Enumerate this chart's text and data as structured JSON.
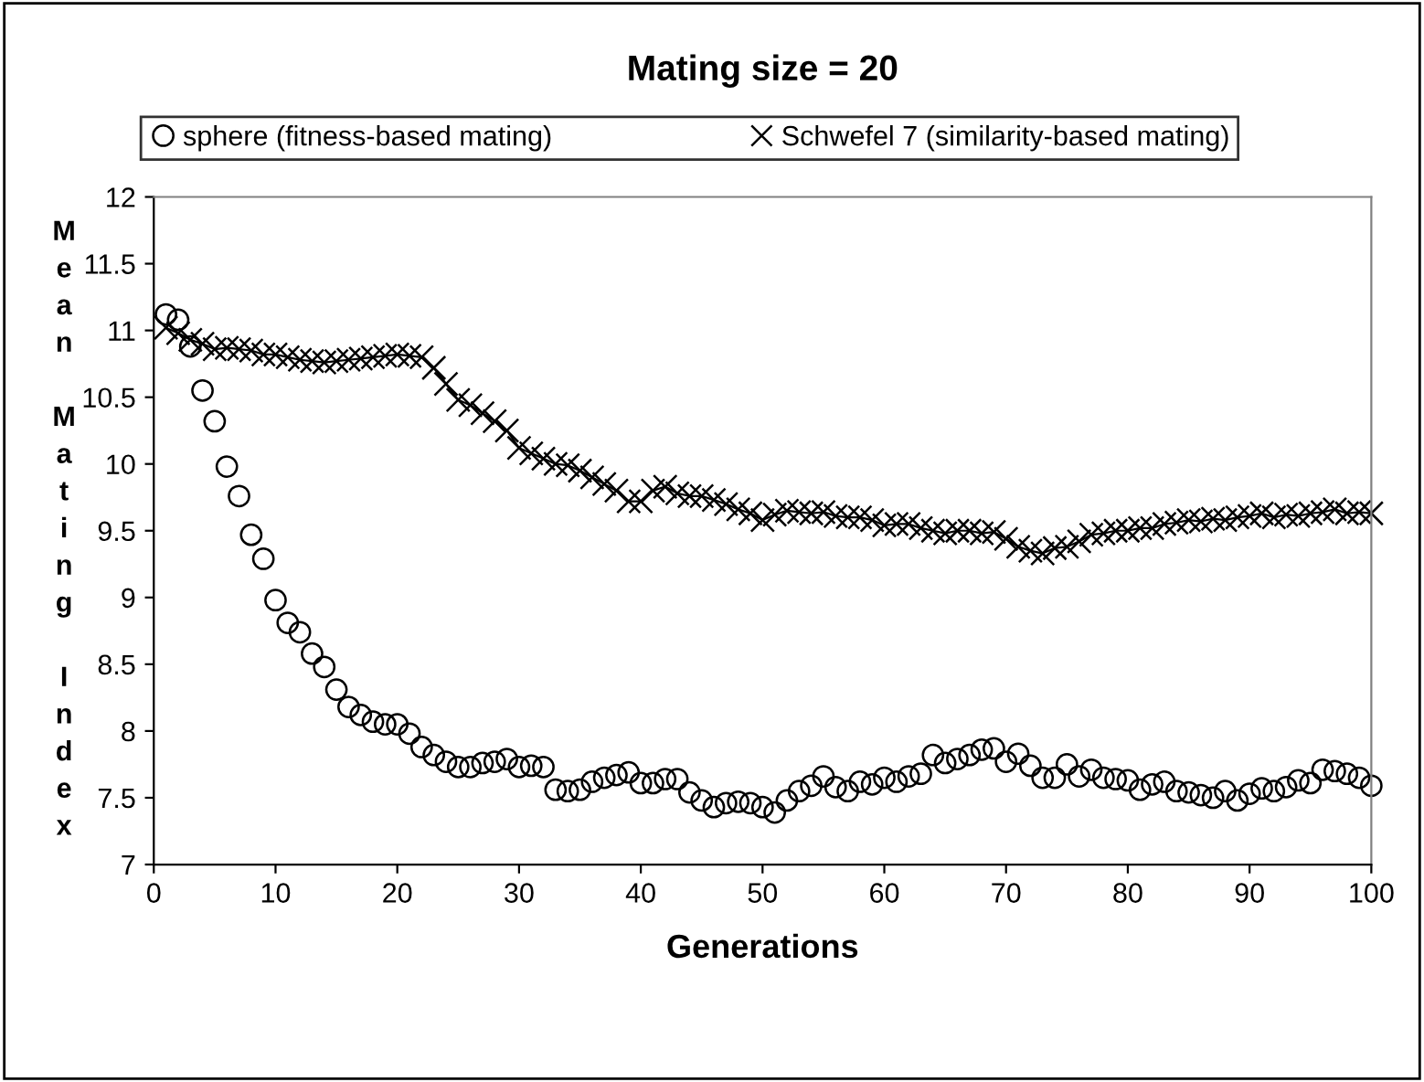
{
  "chart_data": {
    "type": "scatter",
    "title": "Mating size = 20",
    "xlabel": "Generations",
    "ylabel": "Mean Mating Index",
    "xlim": [
      0,
      100
    ],
    "xticks": [
      0,
      10,
      20,
      30,
      40,
      50,
      60,
      70,
      80,
      90,
      100
    ],
    "ylim": [
      7,
      12
    ],
    "yticks": [
      7,
      {
        "value": 7.5,
        "label": "7.5"
      },
      8,
      {
        "value": 8.5,
        "label": "8.5"
      },
      9,
      {
        "value": 9.5,
        "label": "9.5"
      },
      10,
      {
        "value": 10.5,
        "label": "10.5"
      },
      11,
      {
        "value": 11.5,
        "label": "11.5"
      },
      12
    ],
    "grid": false,
    "legend": "top",
    "x": [
      1,
      2,
      3,
      4,
      5,
      6,
      7,
      8,
      9,
      10,
      11,
      12,
      13,
      14,
      15,
      16,
      17,
      18,
      19,
      20,
      21,
      22,
      23,
      24,
      25,
      26,
      27,
      28,
      29,
      30,
      31,
      32,
      33,
      34,
      35,
      36,
      37,
      38,
      39,
      40,
      41,
      42,
      43,
      44,
      45,
      46,
      47,
      48,
      49,
      50,
      51,
      52,
      53,
      54,
      55,
      56,
      57,
      58,
      59,
      60,
      61,
      62,
      63,
      64,
      65,
      66,
      67,
      68,
      69,
      70,
      71,
      72,
      73,
      74,
      75,
      76,
      77,
      78,
      79,
      80,
      81,
      82,
      83,
      84,
      85,
      86,
      87,
      88,
      89,
      90,
      91,
      92,
      93,
      94,
      95,
      96,
      97,
      98,
      99,
      100
    ],
    "series": [
      {
        "name": "sphere (fitness-based mating)",
        "color": "#000000",
        "marker": "circle",
        "line_style": "none",
        "values": [
          11.12,
          11.08,
          10.88,
          10.55,
          10.32,
          9.98,
          9.76,
          9.47,
          9.29,
          8.98,
          8.81,
          8.74,
          8.58,
          8.48,
          8.31,
          8.18,
          8.12,
          8.07,
          8.05,
          8.05,
          7.98,
          7.88,
          7.82,
          7.77,
          7.73,
          7.73,
          7.76,
          7.77,
          7.79,
          7.73,
          7.74,
          7.73,
          7.56,
          7.55,
          7.56,
          7.62,
          7.65,
          7.67,
          7.69,
          7.61,
          7.61,
          7.64,
          7.64,
          7.54,
          7.48,
          7.43,
          7.46,
          7.47,
          7.46,
          7.43,
          7.39,
          7.48,
          7.55,
          7.59,
          7.66,
          7.58,
          7.55,
          7.62,
          7.6,
          7.65,
          7.62,
          7.66,
          7.68,
          7.82,
          7.76,
          7.79,
          7.82,
          7.86,
          7.87,
          7.77,
          7.83,
          7.74,
          7.65,
          7.65,
          7.75,
          7.66,
          7.71,
          7.65,
          7.64,
          7.63,
          7.56,
          7.6,
          7.62,
          7.55,
          7.54,
          7.52,
          7.5,
          7.55,
          7.48,
          7.53,
          7.57,
          7.55,
          7.58,
          7.63,
          7.61,
          7.71,
          7.7,
          7.68,
          7.65,
          7.59
        ]
      },
      {
        "name": "Schwefel 7 (similarity-based mating)",
        "type": "line",
        "color": "#000000",
        "marker": "cross",
        "line_style": "solid",
        "values": [
          11.02,
          10.98,
          10.93,
          10.9,
          10.86,
          10.87,
          10.86,
          10.85,
          10.82,
          10.82,
          10.8,
          10.78,
          10.77,
          10.76,
          10.77,
          10.78,
          10.79,
          10.8,
          10.81,
          10.82,
          10.81,
          10.8,
          10.72,
          10.6,
          10.48,
          10.44,
          10.38,
          10.32,
          10.25,
          10.12,
          10.08,
          10.04,
          10.0,
          9.99,
          9.95,
          9.9,
          9.85,
          9.8,
          9.72,
          9.72,
          9.8,
          9.83,
          9.78,
          9.76,
          9.76,
          9.73,
          9.7,
          9.66,
          9.63,
          9.58,
          9.62,
          9.65,
          9.64,
          9.63,
          9.64,
          9.61,
          9.6,
          9.6,
          9.58,
          9.54,
          9.55,
          9.55,
          9.52,
          9.5,
          9.48,
          9.5,
          9.5,
          9.48,
          9.49,
          9.44,
          9.38,
          9.35,
          9.33,
          9.37,
          9.38,
          9.42,
          9.47,
          9.48,
          9.5,
          9.5,
          9.52,
          9.52,
          9.55,
          9.56,
          9.58,
          9.57,
          9.59,
          9.58,
          9.6,
          9.61,
          9.63,
          9.6,
          9.62,
          9.61,
          9.63,
          9.64,
          9.66,
          9.63,
          9.64,
          9.63
        ]
      }
    ]
  }
}
